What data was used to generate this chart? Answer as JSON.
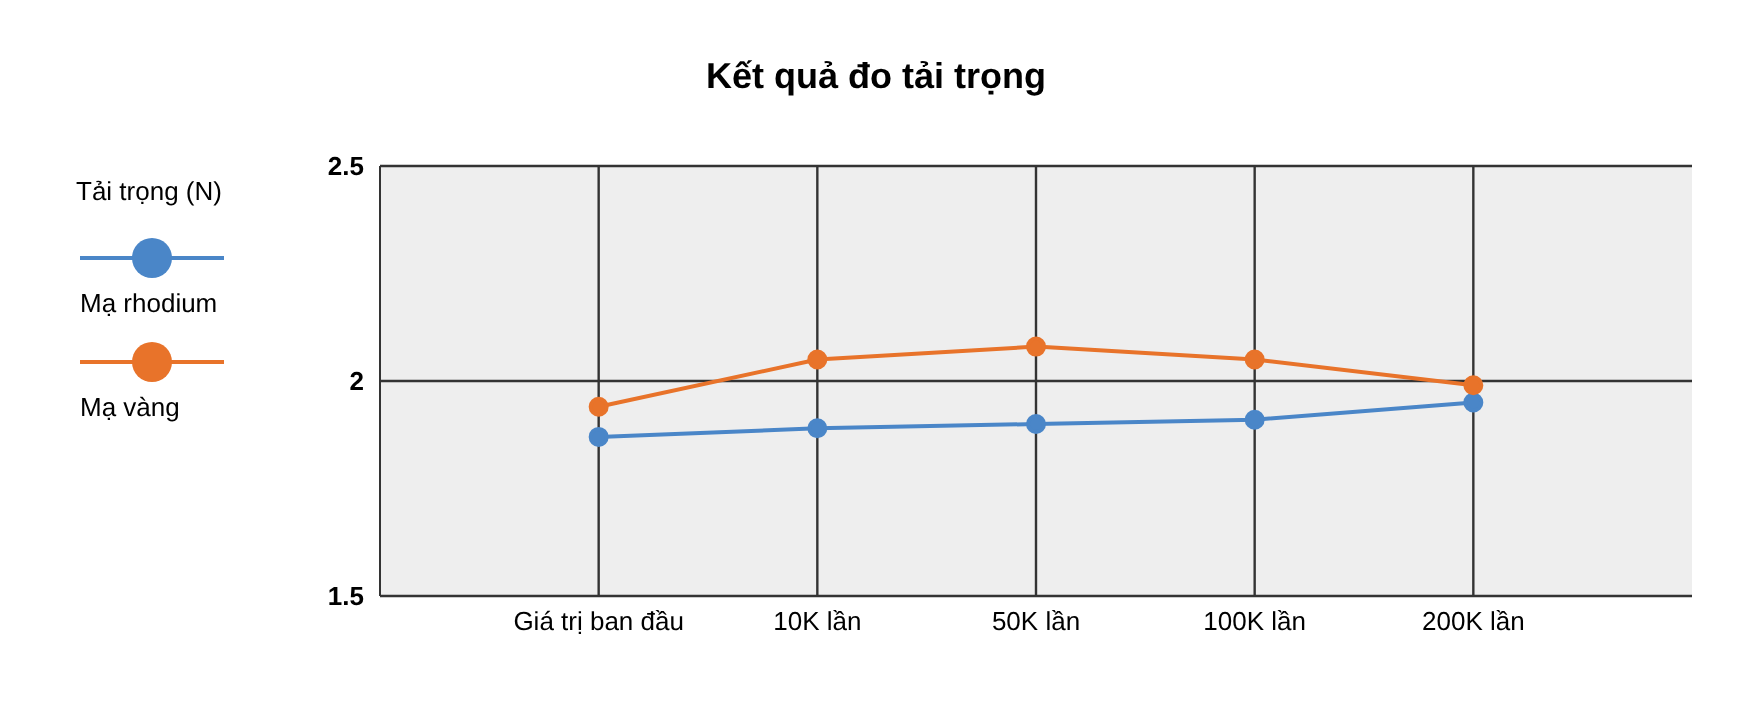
{
  "chart_data": {
    "type": "line",
    "title": "Kết quả đo tải trọng",
    "legend_title": "Tải trọng (N)",
    "categories": [
      "Giá trị ban đầu",
      "10K lần",
      "50K lần",
      "100K lần",
      "200K lần"
    ],
    "series": [
      {
        "name": "Mạ rhodium",
        "color": "#4a86c8",
        "values": [
          1.87,
          1.89,
          1.9,
          1.91,
          1.95
        ]
      },
      {
        "name": "Mạ vàng",
        "color": "#e8732a",
        "values": [
          1.94,
          2.05,
          2.08,
          2.05,
          1.99
        ]
      }
    ],
    "ylim": [
      1.5,
      2.5
    ],
    "yticks": [
      1.5,
      2,
      2.5
    ],
    "grid": true,
    "legend": "left",
    "marker": "circle",
    "line_style": "solid"
  }
}
